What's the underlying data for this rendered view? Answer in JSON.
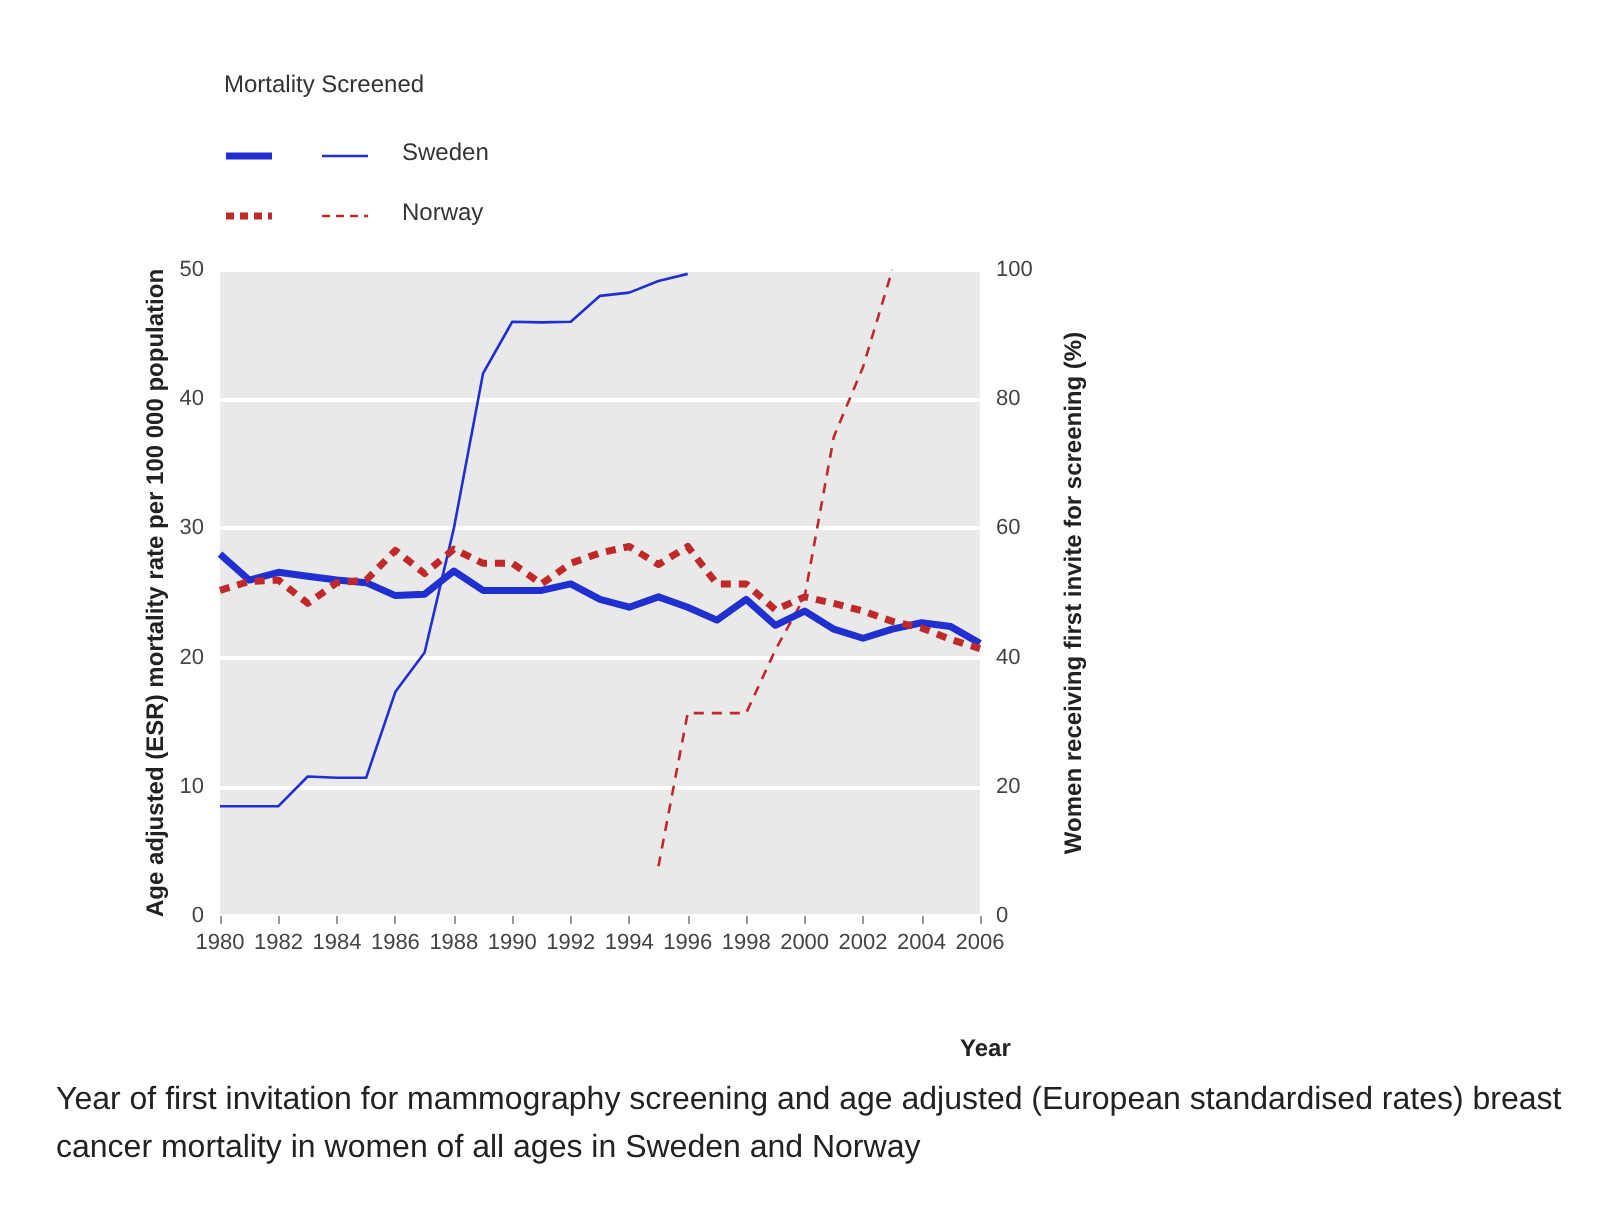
{
  "chart_data": {
    "type": "line",
    "xlabel": "Year",
    "ylabel": "Age adjusted (ESR) mortality rate per 100 000 population",
    "y2label": "Women receiving first invite for screening (%)",
    "legend_title": "Mortality Screened",
    "x": [
      1980,
      1981,
      1982,
      1983,
      1984,
      1985,
      1986,
      1987,
      1988,
      1989,
      1990,
      1991,
      1992,
      1993,
      1994,
      1995,
      1996,
      1997,
      1998,
      1999,
      2000,
      2001,
      2002,
      2003,
      2004,
      2005,
      2006
    ],
    "series": [
      {
        "name": "Sweden",
        "color": "#1f2fd0",
        "line_style": "solid",
        "values": [
          28.0,
          26.0,
          26.6,
          26.3,
          26.0,
          25.8,
          24.8,
          24.9,
          26.7,
          25.2,
          25.2,
          25.2,
          25.7,
          24.5,
          23.9,
          24.7,
          23.9,
          22.9,
          24.5,
          22.5,
          23.6,
          22.2,
          21.5,
          22.2,
          22.7,
          22.4,
          21.1
        ]
      },
      {
        "color": "#1f2fd0",
        "line_style": "solid",
        "axis": "y2",
        "x": [
          1980,
          1981,
          1982,
          1983,
          1984,
          1985,
          1986,
          1987,
          1988,
          1989,
          1990,
          1991,
          1992,
          1993,
          1994,
          1995,
          1996
        ],
        "values": [
          17,
          17,
          17,
          21.6,
          21.4,
          21.4,
          34.7,
          40.8,
          60,
          84,
          92,
          91.9,
          92,
          96,
          96.5,
          98.3,
          99.4
        ]
      },
      {
        "name": "Norway",
        "color": "#c0282a",
        "line_style": "dashed",
        "values": [
          25.2,
          25.9,
          26.0,
          24.2,
          25.8,
          26.0,
          28.3,
          26.5,
          28.4,
          27.3,
          27.3,
          25.7,
          27.3,
          28.1,
          28.6,
          27.2,
          28.6,
          25.7,
          25.7,
          23.7,
          24.7,
          24.2,
          23.6,
          22.8,
          22.3,
          21.4,
          20.7
        ]
      },
      {
        "color": "#c0282a",
        "line_style": "dashed",
        "axis": "y2",
        "x": [
          1995,
          1996,
          1997,
          1998,
          1999,
          2000,
          2001,
          2002,
          2003
        ],
        "values": [
          7.7,
          31.4,
          31.4,
          31.4,
          41.2,
          49.4,
          74.2,
          85,
          100
        ]
      }
    ],
    "xlim": [
      1980,
      2006
    ],
    "xticks": [
      1980,
      1982,
      1984,
      1986,
      1988,
      1990,
      1992,
      1994,
      1996,
      1998,
      2000,
      2002,
      2004,
      2006
    ],
    "ylim": [
      0,
      50
    ],
    "yticks": [
      0,
      10,
      20,
      30,
      40,
      50
    ],
    "y2lim": [
      0,
      100
    ],
    "y2ticks": [
      0,
      20,
      40,
      60,
      80,
      100
    ],
    "grid": "y",
    "legend": "top left",
    "annotations": [
      "Year of first invitation for mammography screening and age adjusted (European standardised rates) breast cancer mortality in women of all ages in Sweden and Norway"
    ]
  }
}
